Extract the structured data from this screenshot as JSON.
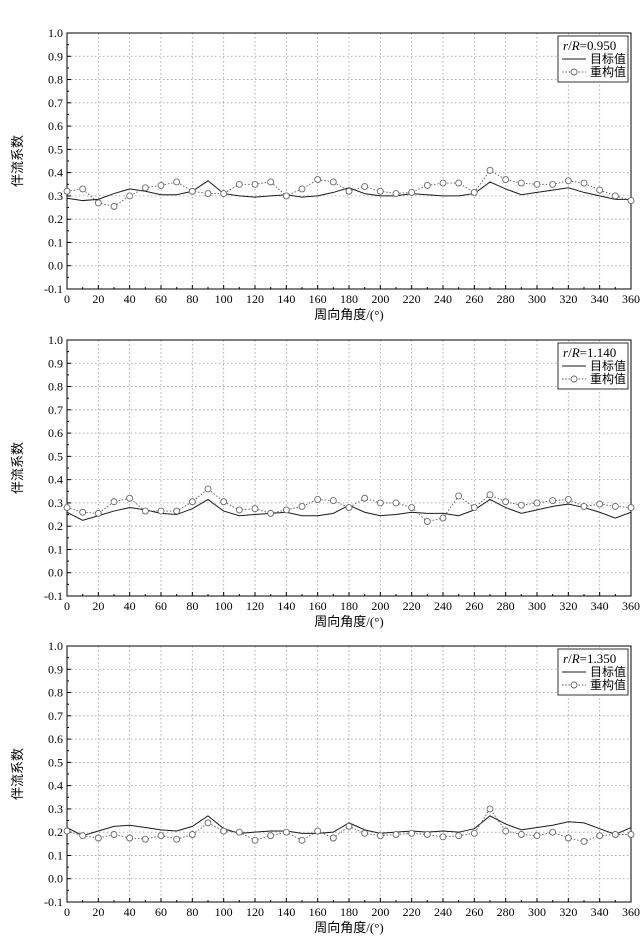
{
  "chart_data": [
    {
      "type": "line",
      "legend_title": {
        "italic_a": "r",
        "sep": "/",
        "italic_b": "R",
        "value": "=0.950"
      },
      "xlabel": "周向角度/(°)",
      "ylabel": "伴流系数",
      "xlim": [
        0,
        360
      ],
      "ylim": [
        -0.1,
        1.0
      ],
      "x_ticks": [
        0,
        20,
        40,
        60,
        80,
        100,
        120,
        140,
        160,
        180,
        200,
        220,
        240,
        260,
        280,
        300,
        320,
        340,
        360
      ],
      "y_ticks": [
        -0.1,
        0.0,
        0.1,
        0.2,
        0.3,
        0.4,
        0.5,
        0.6,
        0.7,
        0.8,
        0.9,
        1.0
      ],
      "grid": true,
      "legend_position": "top-right",
      "x": [
        0,
        10,
        20,
        30,
        40,
        50,
        60,
        70,
        80,
        90,
        100,
        110,
        120,
        130,
        140,
        150,
        160,
        170,
        180,
        190,
        200,
        210,
        220,
        230,
        240,
        250,
        260,
        270,
        280,
        290,
        300,
        310,
        320,
        330,
        340,
        350,
        360
      ],
      "series": [
        {
          "name": "目标值",
          "style": "solid",
          "values": [
            0.29,
            0.28,
            0.285,
            0.31,
            0.33,
            0.32,
            0.305,
            0.305,
            0.32,
            0.365,
            0.31,
            0.3,
            0.295,
            0.3,
            0.305,
            0.295,
            0.3,
            0.315,
            0.335,
            0.31,
            0.3,
            0.3,
            0.31,
            0.305,
            0.3,
            0.3,
            0.31,
            0.36,
            0.33,
            0.305,
            0.315,
            0.325,
            0.335,
            0.315,
            0.3,
            0.285,
            0.285
          ]
        },
        {
          "name": "重构值",
          "style": "dotted-circle",
          "values": [
            0.32,
            0.33,
            0.27,
            0.255,
            0.3,
            0.335,
            0.345,
            0.36,
            0.32,
            0.31,
            0.31,
            0.35,
            0.35,
            0.36,
            0.3,
            0.33,
            0.37,
            0.36,
            0.32,
            0.34,
            0.32,
            0.31,
            0.315,
            0.345,
            0.355,
            0.355,
            0.315,
            0.41,
            0.37,
            0.355,
            0.35,
            0.35,
            0.365,
            0.355,
            0.325,
            0.3,
            0.28
          ]
        }
      ]
    },
    {
      "type": "line",
      "legend_title": {
        "italic_a": "r",
        "sep": "/",
        "italic_b": "R",
        "value": "=1.140"
      },
      "xlabel": "周向角度/(°)",
      "ylabel": "伴流系数",
      "xlim": [
        0,
        360
      ],
      "ylim": [
        -0.1,
        1.0
      ],
      "x_ticks": [
        0,
        20,
        40,
        60,
        80,
        100,
        120,
        140,
        160,
        180,
        200,
        220,
        240,
        260,
        280,
        300,
        320,
        340,
        360
      ],
      "y_ticks": [
        -0.1,
        0.0,
        0.1,
        0.2,
        0.3,
        0.4,
        0.5,
        0.6,
        0.7,
        0.8,
        0.9,
        1.0
      ],
      "grid": true,
      "legend_position": "top-right",
      "x": [
        0,
        10,
        20,
        30,
        40,
        50,
        60,
        70,
        80,
        90,
        100,
        110,
        120,
        130,
        140,
        150,
        160,
        170,
        180,
        190,
        200,
        210,
        220,
        230,
        240,
        250,
        260,
        270,
        280,
        290,
        300,
        310,
        320,
        330,
        340,
        350,
        360
      ],
      "series": [
        {
          "name": "目标值",
          "style": "solid",
          "values": [
            0.26,
            0.225,
            0.245,
            0.265,
            0.28,
            0.27,
            0.255,
            0.25,
            0.275,
            0.315,
            0.265,
            0.245,
            0.25,
            0.255,
            0.26,
            0.245,
            0.245,
            0.255,
            0.29,
            0.26,
            0.245,
            0.25,
            0.26,
            0.255,
            0.255,
            0.245,
            0.27,
            0.315,
            0.28,
            0.255,
            0.27,
            0.285,
            0.295,
            0.28,
            0.26,
            0.235,
            0.26
          ]
        },
        {
          "name": "重构值",
          "style": "dotted-circle",
          "values": [
            0.28,
            0.26,
            0.255,
            0.305,
            0.32,
            0.265,
            0.265,
            0.265,
            0.305,
            0.36,
            0.305,
            0.27,
            0.275,
            0.255,
            0.27,
            0.285,
            0.315,
            0.31,
            0.28,
            0.32,
            0.3,
            0.3,
            0.28,
            0.22,
            0.235,
            0.33,
            0.28,
            0.335,
            0.305,
            0.29,
            0.3,
            0.31,
            0.315,
            0.285,
            0.295,
            0.285,
            0.28
          ]
        }
      ]
    },
    {
      "type": "line",
      "legend_title": {
        "italic_a": "r",
        "sep": "/",
        "italic_b": "R",
        "value": "=1.350"
      },
      "xlabel": "周向角度/(°)",
      "ylabel": "伴流系数",
      "xlim": [
        0,
        360
      ],
      "ylim": [
        -0.1,
        1.0
      ],
      "x_ticks": [
        0,
        20,
        40,
        60,
        80,
        100,
        120,
        140,
        160,
        180,
        200,
        220,
        240,
        260,
        280,
        300,
        320,
        340,
        360
      ],
      "y_ticks": [
        -0.1,
        0.0,
        0.1,
        0.2,
        0.3,
        0.4,
        0.5,
        0.6,
        0.7,
        0.8,
        0.9,
        1.0
      ],
      "grid": true,
      "legend_position": "top-right",
      "x": [
        0,
        10,
        20,
        30,
        40,
        50,
        60,
        70,
        80,
        90,
        100,
        110,
        120,
        130,
        140,
        150,
        160,
        170,
        180,
        190,
        200,
        210,
        220,
        230,
        240,
        250,
        260,
        270,
        280,
        290,
        300,
        310,
        320,
        330,
        340,
        350,
        360
      ],
      "series": [
        {
          "name": "目标值",
          "style": "solid",
          "values": [
            0.22,
            0.185,
            0.205,
            0.225,
            0.23,
            0.22,
            0.21,
            0.205,
            0.225,
            0.27,
            0.215,
            0.195,
            0.2,
            0.205,
            0.205,
            0.195,
            0.195,
            0.2,
            0.24,
            0.21,
            0.195,
            0.2,
            0.205,
            0.2,
            0.205,
            0.2,
            0.215,
            0.27,
            0.235,
            0.21,
            0.22,
            0.23,
            0.245,
            0.24,
            0.215,
            0.19,
            0.22
          ]
        },
        {
          "name": "重构值",
          "style": "dotted-circle",
          "values": [
            0.205,
            0.185,
            0.175,
            0.19,
            0.175,
            0.17,
            0.185,
            0.17,
            0.19,
            0.24,
            0.205,
            0.2,
            0.165,
            0.185,
            0.2,
            0.165,
            0.205,
            0.175,
            0.225,
            0.195,
            0.185,
            0.19,
            0.195,
            0.19,
            0.18,
            0.185,
            0.195,
            0.3,
            0.205,
            0.19,
            0.185,
            0.2,
            0.175,
            0.16,
            0.185,
            0.19,
            0.19
          ]
        }
      ]
    }
  ]
}
